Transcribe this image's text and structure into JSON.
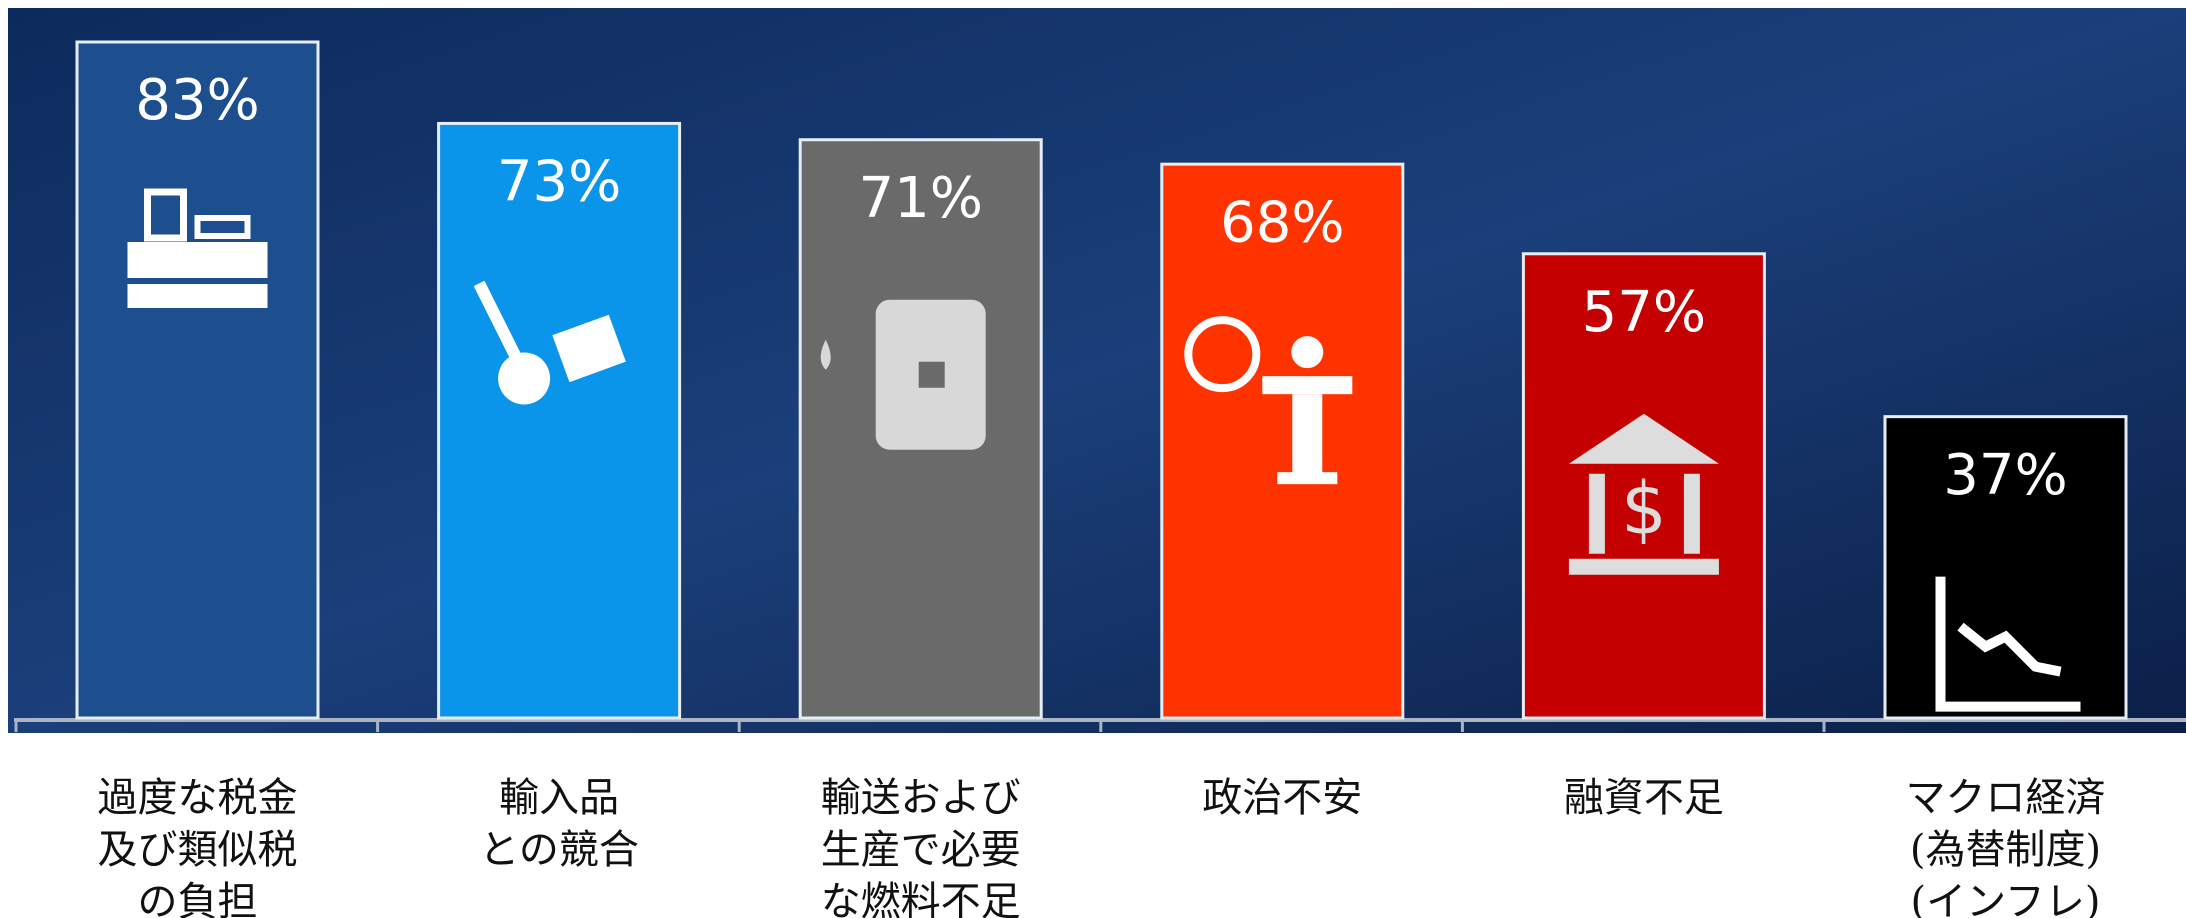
{
  "chart_data": {
    "type": "bar",
    "categories": [
      "過度な税金\n及び類似税\nの負担",
      "輸入品\nとの競合",
      "輸送および\n生産で必要\nな燃料不足",
      "政治不安",
      "融資不足",
      "マクロ経済\n(為替制度)\n(インフレ)"
    ],
    "values": [
      83,
      73,
      71,
      68,
      57,
      37
    ],
    "value_labels": [
      "83%",
      "73%",
      "71%",
      "68%",
      "57%",
      "37%"
    ],
    "colors": [
      "#1d4f8f",
      "#0b95ea",
      "#6a6a6a",
      "#ff3300",
      "#c40000",
      "#000000"
    ]
  }
}
